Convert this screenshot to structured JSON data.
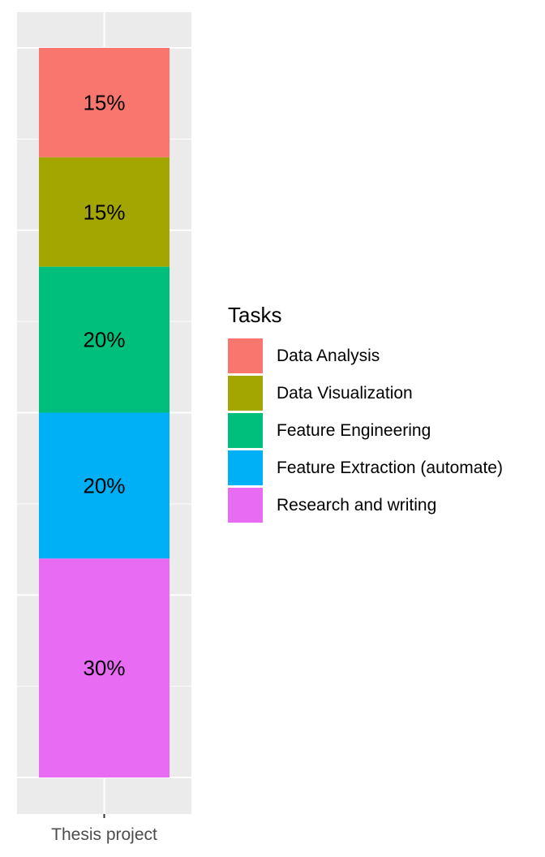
{
  "chart_data": {
    "type": "bar",
    "stacked": true,
    "categories": [
      "Thesis project"
    ],
    "series": [
      {
        "name": "Data Analysis",
        "values": [
          15
        ],
        "label": "15%",
        "color": "#F8766D"
      },
      {
        "name": "Data Visualization",
        "values": [
          15
        ],
        "label": "15%",
        "color": "#A3A500"
      },
      {
        "name": "Feature Engineering",
        "values": [
          20
        ],
        "label": "20%",
        "color": "#00BF7D"
      },
      {
        "name": "Feature Extraction (automate)",
        "values": [
          20
        ],
        "label": "20%",
        "color": "#00B0F6"
      },
      {
        "name": "Research and writing",
        "values": [
          30
        ],
        "label": "30%",
        "color": "#E76BF3"
      }
    ],
    "stack_order_top_to_bottom": [
      "Data Analysis",
      "Data Visualization",
      "Feature Engineering",
      "Feature Extraction (automate)",
      "Research and writing"
    ],
    "ylim": [
      0,
      100
    ],
    "xlabel": "",
    "ylabel": "",
    "title": "",
    "legend": {
      "title": "Tasks",
      "position": "right"
    },
    "grid": true,
    "panel_background": "#EBEBEB"
  }
}
